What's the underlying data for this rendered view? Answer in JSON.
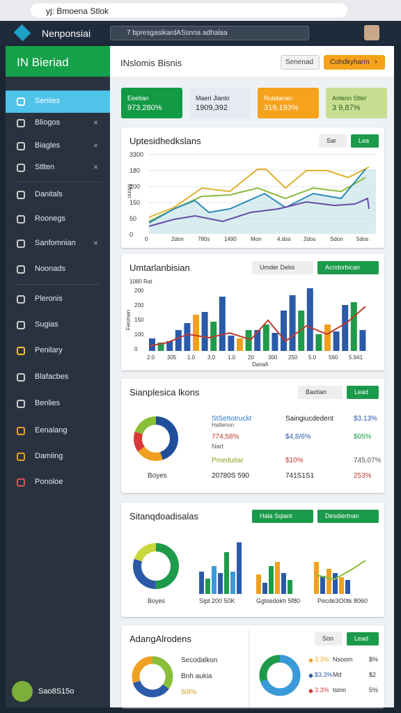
{
  "browser": {
    "tab": "yj: Bmoena Stlok"
  },
  "header": {
    "app": "Nenponsiai",
    "search": "7 bpresgasikardASsnna adhalaa"
  },
  "sidebar": {
    "brand": "IN Bieriad",
    "items": [
      "Seniies",
      "Bliogos",
      "Biagles",
      "Stlten",
      "Danitals",
      "Roonegs",
      "Sanfomnian",
      "Noonads",
      "Pleronis",
      "Sugias",
      "Penilary",
      "Blafacbes",
      "Benlies",
      "Eenalang",
      "Damiing",
      "Ponoloe"
    ],
    "user": "Sao8S15o"
  },
  "topbar": {
    "title": "INslomis Bisnis",
    "button": "Senenad",
    "action": "Cohdkyharm"
  },
  "kpis": [
    {
      "label": "Eeetian",
      "value": "973.280%"
    },
    {
      "label": "Maeri Jlanlo",
      "value": "1909,392"
    },
    {
      "label": "Rulatarian",
      "value": "319.193%"
    },
    {
      "label": "Anlenn Stter",
      "value": "3 9,87%"
    }
  ],
  "line_panel": {
    "title": "Uptesidhedkslans",
    "buttons": [
      "Sar",
      "Lea"
    ],
    "y_title": "Mnnn",
    "y_labels": [
      "3300",
      "180",
      "200",
      "150",
      "50",
      "0"
    ],
    "x_labels": [
      "0",
      "2don",
      "780s",
      "1490",
      "Mon",
      "4.dos",
      "2dos",
      "Sdon",
      "5dos"
    ]
  },
  "bar_panel": {
    "title": "Umtarlanbisian",
    "buttons": [
      "Umder Deloi",
      "Acndorbican"
    ],
    "y_top": "1080 Rat",
    "y_title": "Fenmen",
    "y_labels": [
      "200",
      "200",
      "150",
      "100",
      "0"
    ],
    "x_labels": [
      "2.0",
      "305",
      "1.0",
      "3.0",
      "1.0",
      "20",
      "300",
      "250",
      "5.0",
      "560",
      "5.941"
    ],
    "x_title": "Danafi"
  },
  "table_panel": {
    "title": "Sianplesica lkons",
    "buttons": [
      "Baxtian",
      "Lead"
    ],
    "donut_label": "Boyes",
    "rows": [
      [
        "StSettotruckt",
        "Saingiucdedent",
        "$3.13%"
      ],
      [
        "774,58%",
        "$4,8/6%",
        "$05%"
      ],
      [
        "Pmeduitar",
        "$10%",
        "745,07%"
      ],
      [
        "20780S 590",
        "741S1S1",
        "253%"
      ]
    ],
    "subs": [
      "Haltenon",
      "Nart"
    ]
  },
  "mix_panel": {
    "title": "Sitanqdoadisalas",
    "buttons": [
      "Hala Sqlant",
      "Desdiertnan"
    ],
    "labels": [
      "Boyes",
      "Sipt 200 50K",
      "Gglsedokh 5f80",
      "Pecde3O0tk 8060"
    ]
  },
  "last_panel": {
    "title": "AdangAlrodens",
    "buttons": [
      "Son",
      "Lead"
    ],
    "left": [
      "Secodalkon",
      "Bnh aukia",
      "50l%"
    ],
    "rows": [
      [
        "3.3%",
        "Nsoom",
        "$%"
      ],
      [
        "$3.3%",
        "Md",
        "$2"
      ],
      [
        "3.3%",
        "tsinn",
        "5%"
      ]
    ]
  }
}
